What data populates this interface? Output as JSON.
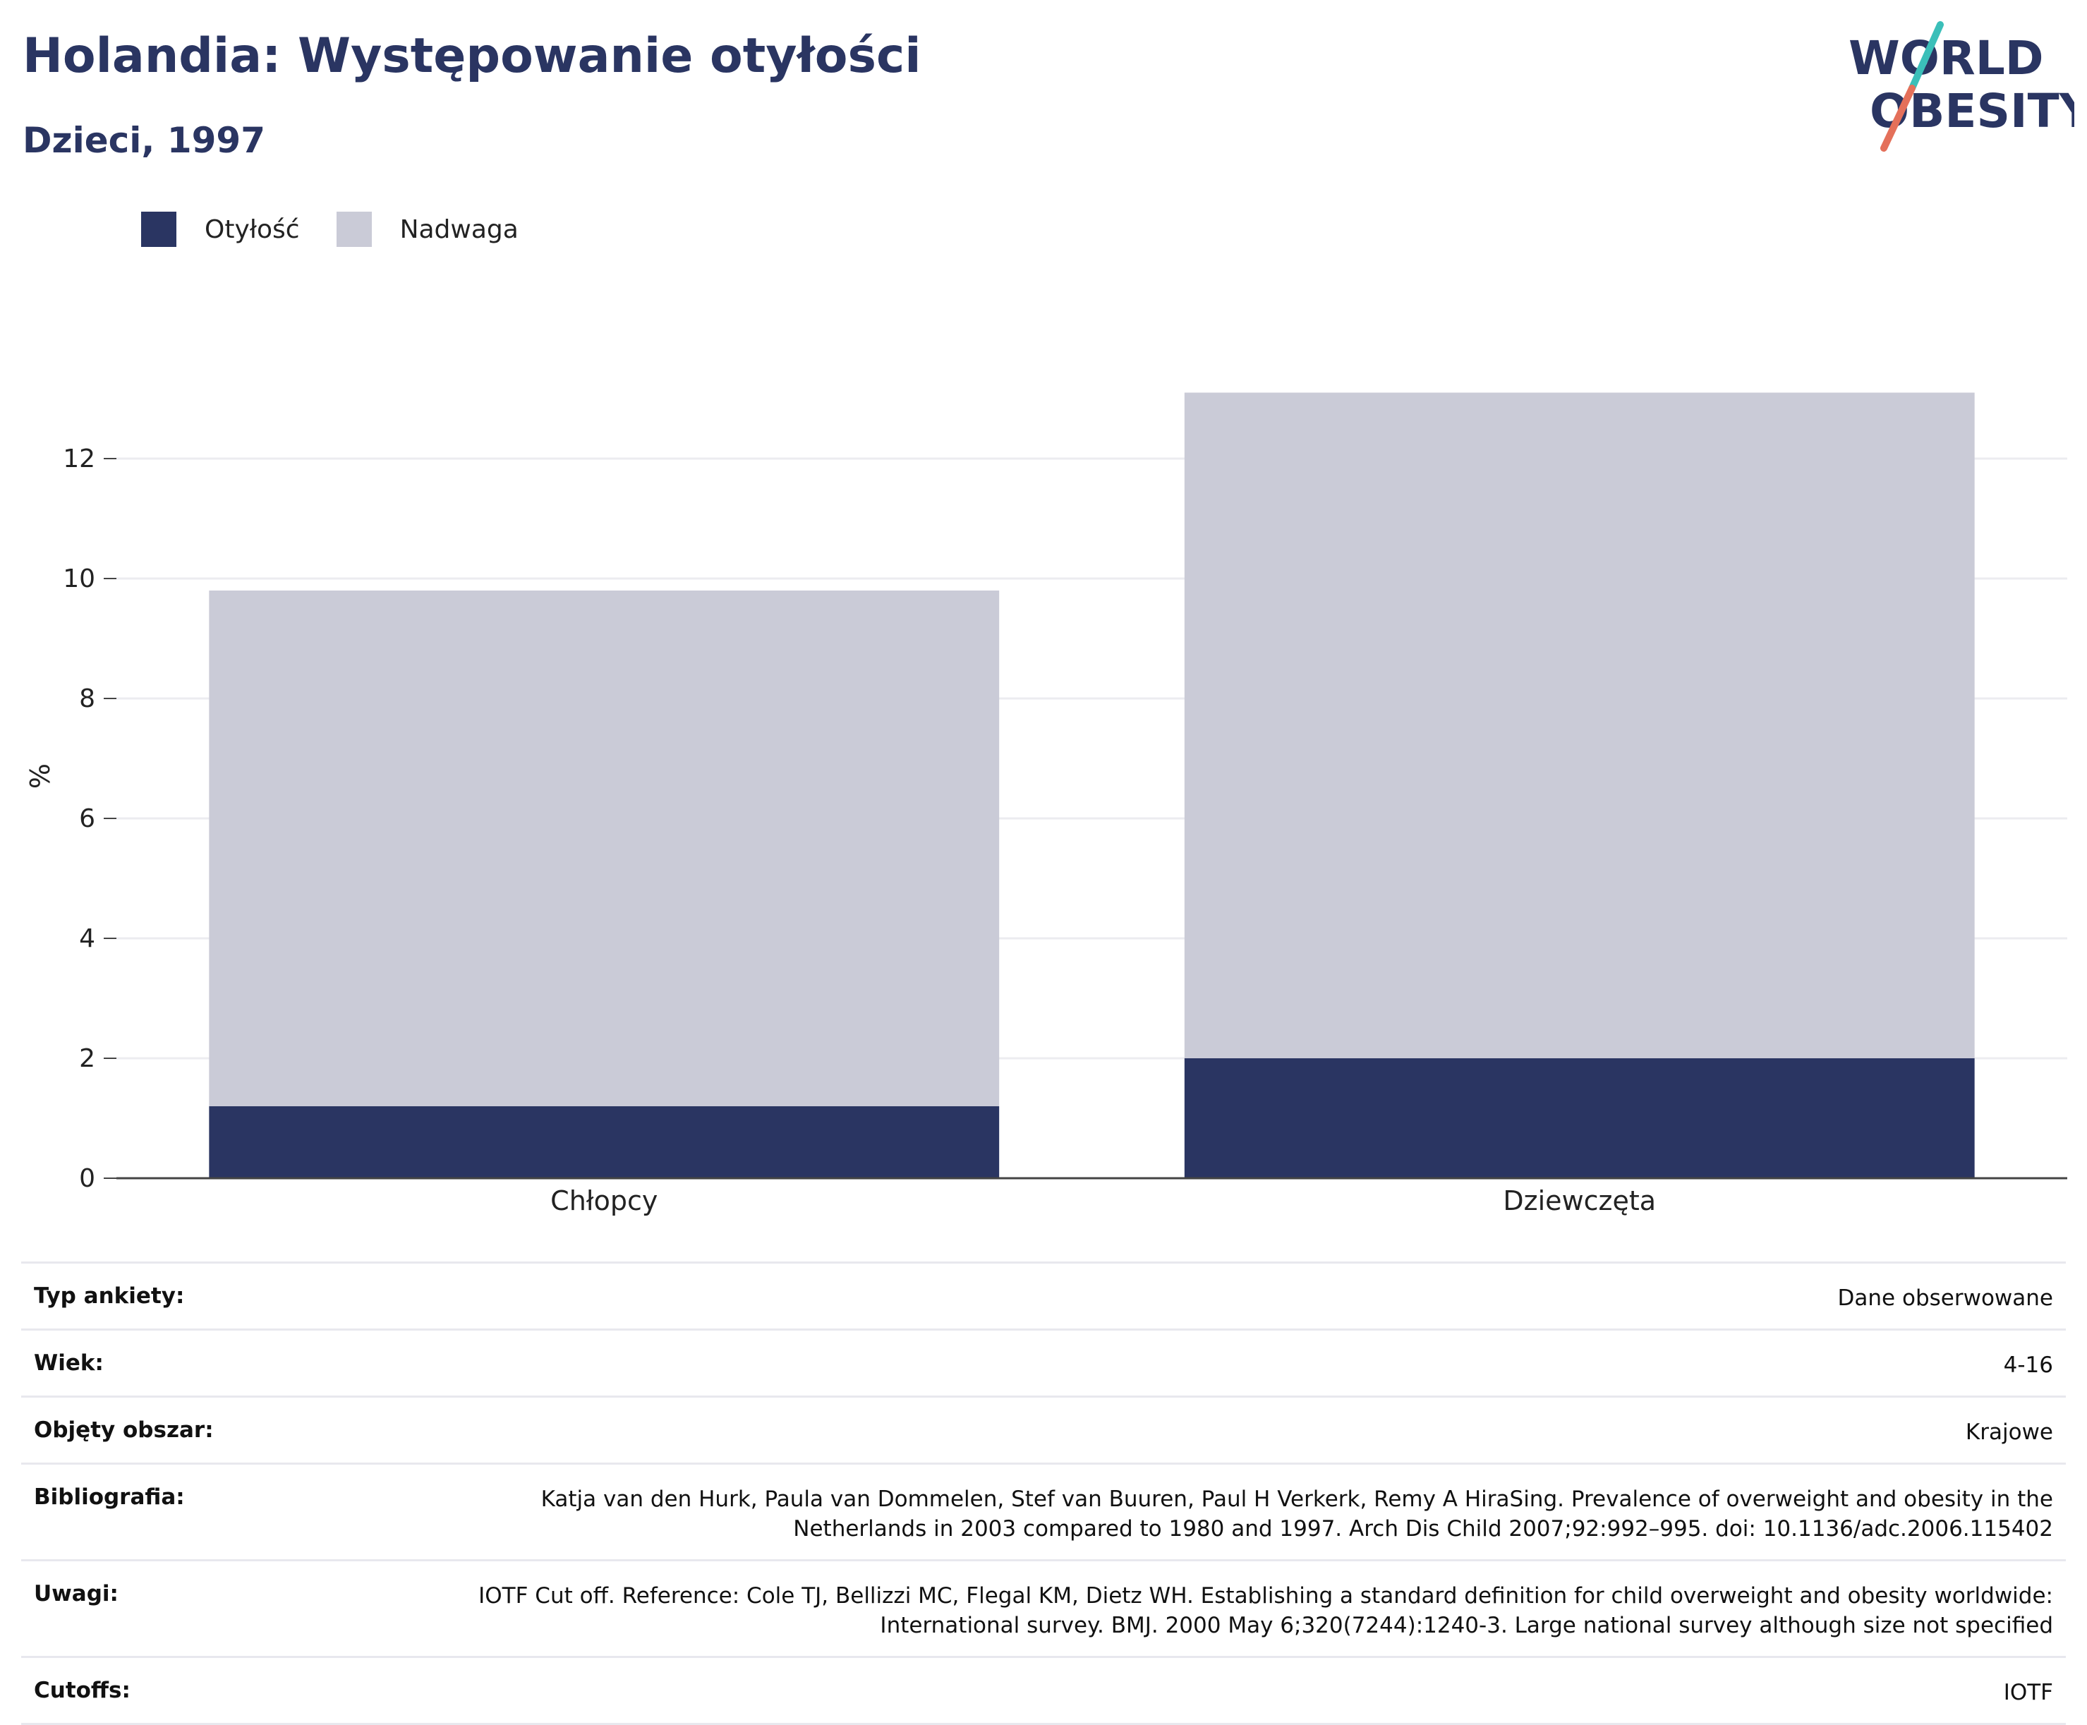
{
  "header": {
    "title": "Holandia: Występowanie otyłości",
    "subtitle": "Dzieci, 1997"
  },
  "logo": {
    "line1": "WORLD",
    "line2": "OBESITY"
  },
  "colors": {
    "obesity": "#2a3562",
    "overweight": "#cacbd7",
    "grid": "#ececf0",
    "axis": "#444444"
  },
  "chart_data": {
    "type": "bar",
    "stacked": true,
    "categories": [
      "Chłopcy",
      "Dziewczęta"
    ],
    "series": [
      {
        "name": "Otyłość",
        "values": [
          1.2,
          2.0
        ]
      },
      {
        "name": "Nadwaga",
        "values": [
          8.6,
          11.1
        ]
      }
    ],
    "ylabel": "%",
    "ylim": [
      0,
      14
    ],
    "yticks": [
      0,
      2,
      4,
      6,
      8,
      10,
      12
    ],
    "grid": true,
    "legend": "top-left"
  },
  "info_table": [
    {
      "key": "Typ ankiety:",
      "value": "Dane obserwowane"
    },
    {
      "key": "Wiek:",
      "value": "4-16"
    },
    {
      "key": "Objęty obszar:",
      "value": "Krajowe"
    },
    {
      "key": "Bibliografia:",
      "value": "Katja van den Hurk, Paula van Dommelen, Stef van Buuren, Paul H Verkerk, Remy A HiraSing. Prevalence of overweight and obesity in the Netherlands in 2003 compared to 1980 and 1997. Arch Dis Child 2007;92:992–995. doi: 10.1136/adc.2006.115402"
    },
    {
      "key": "Uwagi:",
      "value": "IOTF Cut off. Reference: Cole TJ, Bellizzi MC, Flegal KM, Dietz WH. Establishing a standard definition for child overweight and obesity worldwide: International survey. BMJ. 2000 May 6;320(7244):1240-3. Large national survey although size not specified"
    },
    {
      "key": "Cutoffs:",
      "value": "IOTF"
    }
  ]
}
